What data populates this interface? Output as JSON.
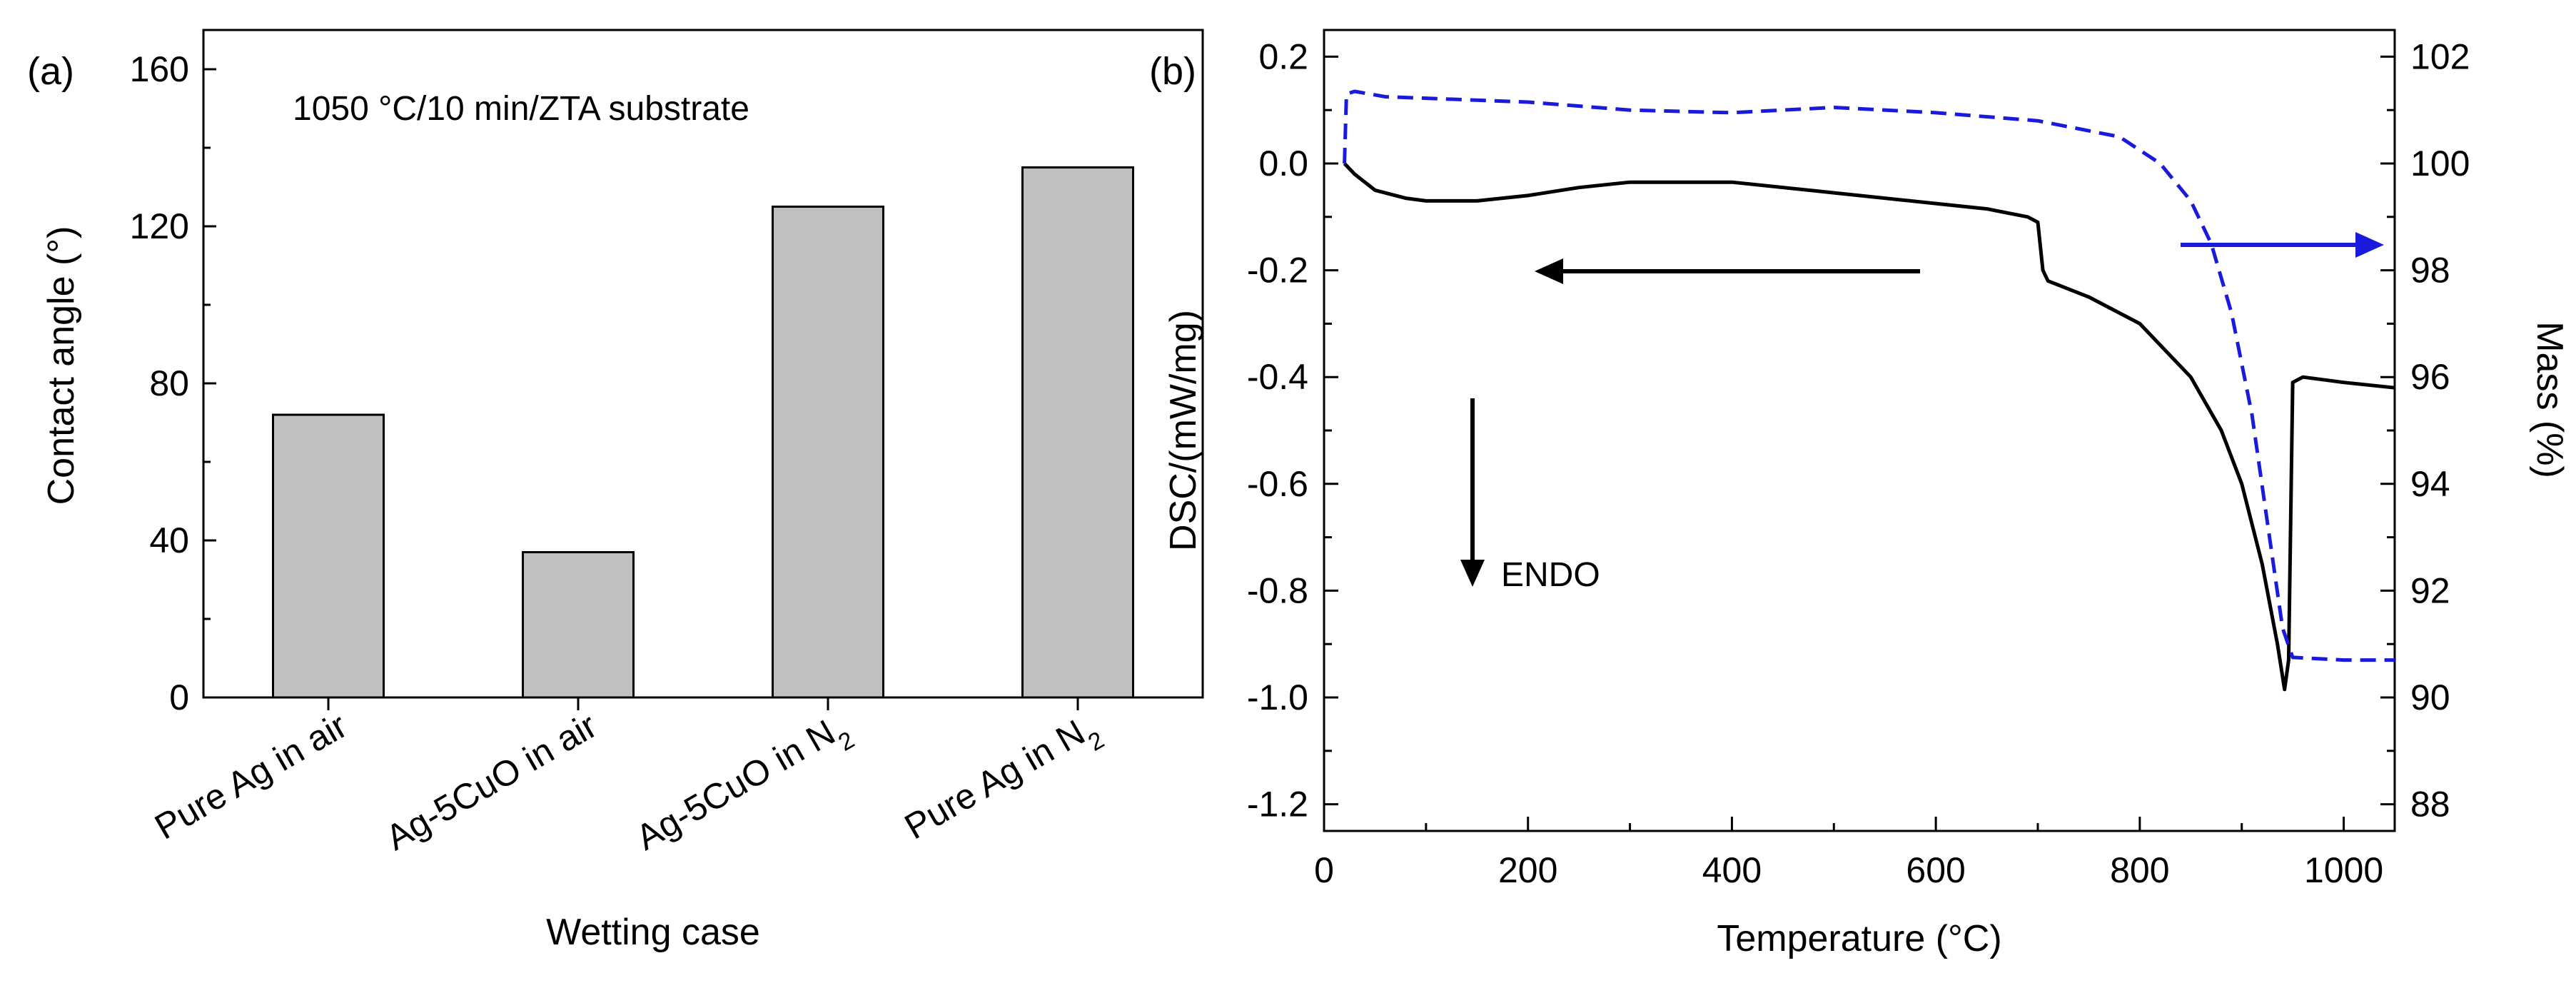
{
  "chart_data": [
    {
      "type": "bar",
      "panel_label": "(a)",
      "annotation": "1050 °C/10 min/ZTA substrate",
      "xlabel": "Wetting case",
      "ylabel": "Contact angle (°)",
      "ylim": [
        0,
        170
      ],
      "yticks": [
        0,
        40,
        80,
        120,
        160
      ],
      "categories": [
        {
          "main": "Pure Ag in air",
          "sub": ""
        },
        {
          "main": "Ag-5CuO in air",
          "sub": ""
        },
        {
          "main": "Ag-5CuO in N",
          "sub": "2"
        },
        {
          "main": "Pure Ag in N",
          "sub": "2"
        }
      ],
      "values": [
        72,
        37,
        125,
        135
      ],
      "bar_color": "#c0c0c0",
      "grid": false
    },
    {
      "type": "line",
      "panel_label": "(b)",
      "xlabel": "Temperature (°C)",
      "ylabel": "DSC/(mW/mg)",
      "y2label": "Mass (%)",
      "xlim": [
        0,
        1050
      ],
      "ylim": [
        -1.25,
        0.25
      ],
      "y2lim": [
        87.5,
        102.5
      ],
      "xticks": [
        0,
        200,
        400,
        600,
        800,
        1000
      ],
      "yticks": [
        -1.2,
        -1.0,
        -0.8,
        -0.6,
        -0.4,
        -0.2,
        0.0,
        0.2
      ],
      "y2ticks": [
        88,
        90,
        92,
        94,
        96,
        98,
        100,
        102
      ],
      "annotation": "ENDO",
      "grid": false,
      "series": [
        {
          "axis": "left",
          "style": "solid",
          "color": "#000000",
          "points": [
            [
              20,
              0.0
            ],
            [
              30,
              -0.02
            ],
            [
              50,
              -0.05
            ],
            [
              80,
              -0.065
            ],
            [
              100,
              -0.07
            ],
            [
              150,
              -0.07
            ],
            [
              200,
              -0.06
            ],
            [
              250,
              -0.045
            ],
            [
              300,
              -0.035
            ],
            [
              400,
              -0.035
            ],
            [
              500,
              -0.055
            ],
            [
              600,
              -0.075
            ],
            [
              650,
              -0.085
            ],
            [
              690,
              -0.1
            ],
            [
              700,
              -0.11
            ],
            [
              705,
              -0.2
            ],
            [
              710,
              -0.22
            ],
            [
              750,
              -0.25
            ],
            [
              800,
              -0.3
            ],
            [
              850,
              -0.4
            ],
            [
              880,
              -0.5
            ],
            [
              900,
              -0.6
            ],
            [
              920,
              -0.75
            ],
            [
              935,
              -0.9
            ],
            [
              942,
              -0.985
            ],
            [
              946,
              -0.93
            ],
            [
              950,
              -0.41
            ],
            [
              960,
              -0.4
            ],
            [
              1000,
              -0.41
            ],
            [
              1050,
              -0.42
            ]
          ]
        },
        {
          "axis": "right",
          "style": "dashed",
          "color": "#1a1adc",
          "points": [
            [
              20,
              100.0
            ],
            [
              22,
              101.3
            ],
            [
              30,
              101.35
            ],
            [
              60,
              101.25
            ],
            [
              200,
              101.15
            ],
            [
              300,
              101.0
            ],
            [
              400,
              100.95
            ],
            [
              500,
              101.05
            ],
            [
              600,
              100.95
            ],
            [
              700,
              100.8
            ],
            [
              780,
              100.5
            ],
            [
              820,
              100.0
            ],
            [
              850,
              99.3
            ],
            [
              870,
              98.5
            ],
            [
              890,
              97.2
            ],
            [
              910,
              95.3
            ],
            [
              925,
              93.3
            ],
            [
              940,
              91.3
            ],
            [
              950,
              90.75
            ],
            [
              1000,
              90.7
            ],
            [
              1050,
              90.7
            ]
          ]
        }
      ]
    }
  ]
}
